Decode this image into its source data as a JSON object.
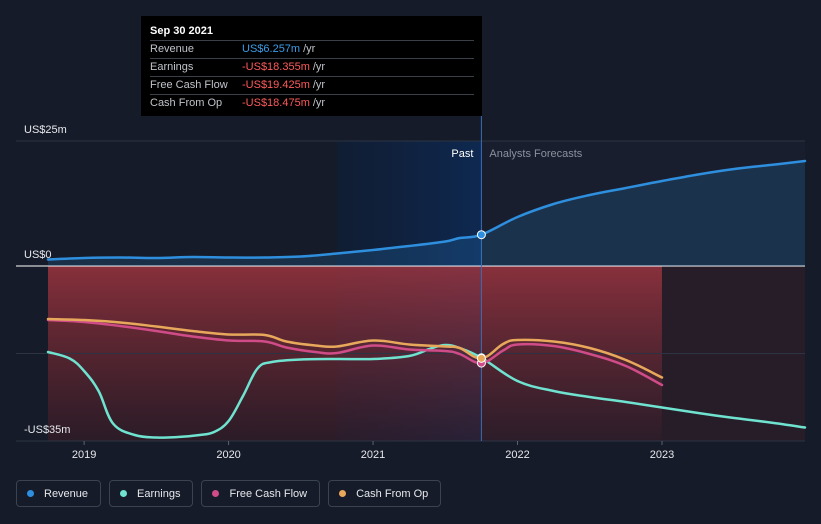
{
  "tooltip": {
    "date": "Sep 30 2021",
    "rows": [
      {
        "name": "Revenue",
        "value": "US$6.257m",
        "unit": "/yr",
        "color": "#3b9be6"
      },
      {
        "name": "Earnings",
        "value": "-US$18.355m",
        "unit": "/yr",
        "color": "#ff5a5a"
      },
      {
        "name": "Free Cash Flow",
        "value": "-US$19.425m",
        "unit": "/yr",
        "color": "#ff5a5a"
      },
      {
        "name": "Cash From Op",
        "value": "-US$18.475m",
        "unit": "/yr",
        "color": "#ff5a5a"
      }
    ]
  },
  "legend": [
    {
      "label": "Revenue",
      "color": "#2f8fdf"
    },
    {
      "label": "Earnings",
      "color": "#6fe3d0"
    },
    {
      "label": "Free Cash Flow",
      "color": "#cf4c88"
    },
    {
      "label": "Cash From Op",
      "color": "#e8a85c"
    }
  ],
  "chart_data": {
    "type": "line",
    "ylim": [
      -35,
      25
    ],
    "xlim": [
      2018.75,
      2023.99
    ],
    "y_tick_labels": [
      {
        "value": 25,
        "label": "US$25m"
      },
      {
        "value": 0,
        "label": "US$0"
      },
      {
        "value": -35,
        "label": "-US$35m"
      }
    ],
    "x_ticks": [
      {
        "value": 2019,
        "label": "2019"
      },
      {
        "value": 2020,
        "label": "2020"
      },
      {
        "value": 2021,
        "label": "2021"
      },
      {
        "value": 2022,
        "label": "2022"
      },
      {
        "value": 2023,
        "label": "2023"
      }
    ],
    "past_label": "Past",
    "forecast_label": "Analysts Forecasts",
    "divider_x": 2021.75,
    "highlight_start": 2020.75,
    "loss_band_end": 2023.0,
    "marker_x": 2021.75,
    "series": [
      {
        "name": "Revenue",
        "color": "#2f8fdf",
        "fill": true,
        "x": [
          2018.75,
          2019.0,
          2019.25,
          2019.5,
          2019.75,
          2020.0,
          2020.25,
          2020.5,
          2020.75,
          2021.0,
          2021.25,
          2021.5,
          2021.6,
          2021.75,
          2022.0,
          2022.25,
          2022.5,
          2022.75,
          2023.0,
          2023.25,
          2023.5,
          2023.75,
          2023.99
        ],
        "y": [
          1.3,
          1.6,
          1.7,
          1.6,
          1.8,
          1.7,
          1.7,
          1.9,
          2.5,
          3.2,
          4.0,
          4.9,
          5.6,
          6.257,
          9.8,
          12.4,
          14.2,
          15.6,
          17.0,
          18.3,
          19.4,
          20.2,
          21.0
        ]
      },
      {
        "name": "Earnings",
        "color": "#6fe3d0",
        "fill": false,
        "x": [
          2018.75,
          2018.9,
          2019.0,
          2019.1,
          2019.2,
          2019.35,
          2019.5,
          2019.65,
          2019.8,
          2019.9,
          2020.0,
          2020.1,
          2020.2,
          2020.3,
          2020.5,
          2020.75,
          2021.0,
          2021.25,
          2021.4,
          2021.5,
          2021.6,
          2021.75,
          2022.0,
          2022.25,
          2022.5,
          2022.75,
          2023.0,
          2023.25,
          2023.5,
          2023.75,
          2023.99
        ],
        "y": [
          -17.2,
          -18.5,
          -21.0,
          -25.0,
          -31.5,
          -33.8,
          -34.3,
          -34.2,
          -33.8,
          -33.2,
          -31.0,
          -26.0,
          -20.5,
          -19.2,
          -18.7,
          -18.6,
          -18.6,
          -18.0,
          -16.5,
          -15.8,
          -16.4,
          -18.355,
          -23.0,
          -25.0,
          -26.2,
          -27.2,
          -28.3,
          -29.4,
          -30.4,
          -31.3,
          -32.3
        ]
      },
      {
        "name": "Free Cash Flow",
        "color": "#cf4c88",
        "fill": false,
        "x": [
          2018.75,
          2019.0,
          2019.25,
          2019.5,
          2019.75,
          2020.0,
          2020.25,
          2020.4,
          2020.6,
          2020.75,
          2021.0,
          2021.25,
          2021.5,
          2021.6,
          2021.75,
          2021.9,
          2022.0,
          2022.25,
          2022.5,
          2022.75,
          2023.0
        ],
        "y": [
          -10.8,
          -11.2,
          -12.0,
          -13.0,
          -14.1,
          -14.9,
          -15.1,
          -16.3,
          -17.2,
          -17.4,
          -15.9,
          -16.7,
          -17.0,
          -17.6,
          -19.425,
          -16.9,
          -15.7,
          -16.0,
          -17.6,
          -20.0,
          -23.8
        ]
      },
      {
        "name": "Cash From Op",
        "color": "#e8a85c",
        "fill": false,
        "x": [
          2018.75,
          2019.0,
          2019.25,
          2019.5,
          2019.75,
          2020.0,
          2020.25,
          2020.4,
          2020.6,
          2020.75,
          2021.0,
          2021.25,
          2021.5,
          2021.6,
          2021.75,
          2021.9,
          2022.0,
          2022.25,
          2022.5,
          2022.75,
          2023.0
        ],
        "y": [
          -10.6,
          -10.8,
          -11.3,
          -12.1,
          -13.0,
          -13.7,
          -13.8,
          -15.1,
          -15.9,
          -16.1,
          -14.9,
          -15.7,
          -16.1,
          -16.4,
          -18.475,
          -15.6,
          -14.8,
          -15.1,
          -16.4,
          -18.8,
          -22.3
        ]
      }
    ]
  }
}
